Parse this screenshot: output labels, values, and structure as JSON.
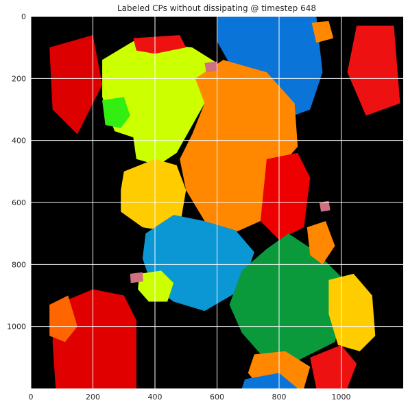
{
  "chart_data": {
    "type": "heatmap",
    "title": "Labeled CPs without dissipating @ timestep 648",
    "xlabel": "",
    "ylabel": "",
    "xlim": [
      0,
      1200
    ],
    "ylim": [
      1200,
      0
    ],
    "x_ticks": [
      0,
      200,
      400,
      600,
      800,
      1000
    ],
    "y_ticks": [
      0,
      200,
      400,
      600,
      800,
      1000
    ],
    "grid": true,
    "background_color": "#000000",
    "grid_color": "#ffffff",
    "regions": [
      {
        "label": "red-top-right-cluster",
        "color": "#ee1111",
        "points": [
          [
            1050,
            30
          ],
          [
            1170,
            30
          ],
          [
            1190,
            280
          ],
          [
            1080,
            320
          ],
          [
            1020,
            180
          ]
        ]
      },
      {
        "label": "red-left-strip",
        "color": "#dd0000",
        "points": [
          [
            60,
            100
          ],
          [
            200,
            60
          ],
          [
            230,
            220
          ],
          [
            150,
            380
          ],
          [
            70,
            300
          ]
        ]
      },
      {
        "label": "blue-top",
        "color": "#0a74d8",
        "points": [
          [
            600,
            0
          ],
          [
            920,
            0
          ],
          [
            940,
            180
          ],
          [
            900,
            300
          ],
          [
            820,
            330
          ],
          [
            720,
            250
          ],
          [
            650,
            170
          ],
          [
            600,
            80
          ]
        ]
      },
      {
        "label": "orange-top-right",
        "color": "#ff8800",
        "points": [
          [
            905,
            20
          ],
          [
            960,
            15
          ],
          [
            975,
            70
          ],
          [
            920,
            85
          ]
        ]
      },
      {
        "label": "yellow-green-upper",
        "color": "#ccff00",
        "points": [
          [
            230,
            140
          ],
          [
            330,
            80
          ],
          [
            520,
            100
          ],
          [
            600,
            150
          ],
          [
            560,
            280
          ],
          [
            470,
            440
          ],
          [
            410,
            480
          ],
          [
            340,
            460
          ],
          [
            330,
            390
          ],
          [
            270,
            370
          ],
          [
            230,
            260
          ]
        ]
      },
      {
        "label": "bright-green-small",
        "color": "#33ee11",
        "points": [
          [
            230,
            270
          ],
          [
            300,
            260
          ],
          [
            320,
            320
          ],
          [
            290,
            360
          ],
          [
            240,
            350
          ]
        ]
      },
      {
        "label": "red-upper-mid",
        "color": "#ee1111",
        "points": [
          [
            330,
            70
          ],
          [
            480,
            60
          ],
          [
            500,
            100
          ],
          [
            400,
            120
          ],
          [
            340,
            110
          ]
        ]
      },
      {
        "label": "orange-center",
        "color": "#ff8800",
        "points": [
          [
            530,
            200
          ],
          [
            620,
            140
          ],
          [
            760,
            180
          ],
          [
            850,
            280
          ],
          [
            860,
            420
          ],
          [
            780,
            510
          ],
          [
            740,
            660
          ],
          [
            650,
            700
          ],
          [
            560,
            660
          ],
          [
            500,
            560
          ],
          [
            480,
            460
          ],
          [
            520,
            380
          ],
          [
            560,
            280
          ]
        ]
      },
      {
        "label": "red-center-right",
        "color": "#ee0000",
        "points": [
          [
            760,
            460
          ],
          [
            860,
            440
          ],
          [
            900,
            520
          ],
          [
            880,
            680
          ],
          [
            800,
            720
          ],
          [
            740,
            660
          ],
          [
            750,
            560
          ]
        ]
      },
      {
        "label": "yellow-center-left",
        "color": "#ffcc00",
        "points": [
          [
            300,
            500
          ],
          [
            400,
            460
          ],
          [
            470,
            480
          ],
          [
            500,
            560
          ],
          [
            480,
            680
          ],
          [
            420,
            690
          ],
          [
            360,
            680
          ],
          [
            290,
            630
          ],
          [
            290,
            560
          ]
        ]
      },
      {
        "label": "teal-blue-center",
        "color": "#0b96d4",
        "points": [
          [
            370,
            700
          ],
          [
            460,
            640
          ],
          [
            560,
            660
          ],
          [
            660,
            690
          ],
          [
            720,
            760
          ],
          [
            680,
            880
          ],
          [
            560,
            950
          ],
          [
            460,
            920
          ],
          [
            390,
            870
          ],
          [
            360,
            780
          ]
        ]
      },
      {
        "label": "green-center-right",
        "color": "#0a9a3c",
        "points": [
          [
            640,
            930
          ],
          [
            680,
            820
          ],
          [
            760,
            750
          ],
          [
            830,
            700
          ],
          [
            920,
            760
          ],
          [
            1000,
            840
          ],
          [
            1010,
            950
          ],
          [
            980,
            1050
          ],
          [
            860,
            1110
          ],
          [
            750,
            1100
          ],
          [
            680,
            1020
          ]
        ]
      },
      {
        "label": "orange-right-mid",
        "color": "#ff8800",
        "points": [
          [
            890,
            680
          ],
          [
            950,
            660
          ],
          [
            980,
            740
          ],
          [
            940,
            800
          ],
          [
            900,
            770
          ]
        ]
      },
      {
        "label": "yellow-right",
        "color": "#ffcc00",
        "points": [
          [
            960,
            850
          ],
          [
            1040,
            830
          ],
          [
            1100,
            900
          ],
          [
            1110,
            1030
          ],
          [
            1060,
            1080
          ],
          [
            990,
            1060
          ],
          [
            960,
            960
          ]
        ]
      },
      {
        "label": "yellow-green-small",
        "color": "#ccff00",
        "points": [
          [
            350,
            830
          ],
          [
            420,
            820
          ],
          [
            460,
            860
          ],
          [
            440,
            920
          ],
          [
            380,
            920
          ],
          [
            345,
            880
          ]
        ]
      },
      {
        "label": "red-bottom-left-large",
        "color": "#e00000",
        "points": [
          [
            80,
            930
          ],
          [
            200,
            880
          ],
          [
            300,
            900
          ],
          [
            340,
            980
          ],
          [
            340,
            1200
          ],
          [
            80,
            1200
          ],
          [
            70,
            1050
          ]
        ]
      },
      {
        "label": "orange-bottom-left",
        "color": "#ff6600",
        "points": [
          [
            60,
            930
          ],
          [
            120,
            900
          ],
          [
            150,
            1000
          ],
          [
            110,
            1050
          ],
          [
            60,
            1030
          ]
        ]
      },
      {
        "label": "orange-bottom-center",
        "color": "#ff8800",
        "points": [
          [
            720,
            1090
          ],
          [
            820,
            1080
          ],
          [
            900,
            1130
          ],
          [
            880,
            1200
          ],
          [
            740,
            1200
          ],
          [
            700,
            1150
          ]
        ]
      },
      {
        "label": "blue-bottom",
        "color": "#0a74d8",
        "points": [
          [
            690,
            1170
          ],
          [
            800,
            1150
          ],
          [
            860,
            1200
          ],
          [
            680,
            1200
          ]
        ]
      },
      {
        "label": "red-bottom-right",
        "color": "#ee1111",
        "points": [
          [
            900,
            1100
          ],
          [
            1000,
            1060
          ],
          [
            1050,
            1120
          ],
          [
            1020,
            1200
          ],
          [
            920,
            1200
          ]
        ]
      },
      {
        "label": "pink-small-1",
        "color": "#d07080",
        "points": [
          [
            560,
            150
          ],
          [
            600,
            145
          ],
          [
            605,
            175
          ],
          [
            565,
            180
          ]
        ]
      },
      {
        "label": "pink-small-2",
        "color": "#d07080",
        "points": [
          [
            930,
            600
          ],
          [
            960,
            595
          ],
          [
            965,
            625
          ],
          [
            935,
            630
          ]
        ]
      },
      {
        "label": "pink-small-3",
        "color": "#d07080",
        "points": [
          [
            320,
            830
          ],
          [
            360,
            825
          ],
          [
            362,
            855
          ],
          [
            322,
            860
          ]
        ]
      }
    ]
  }
}
